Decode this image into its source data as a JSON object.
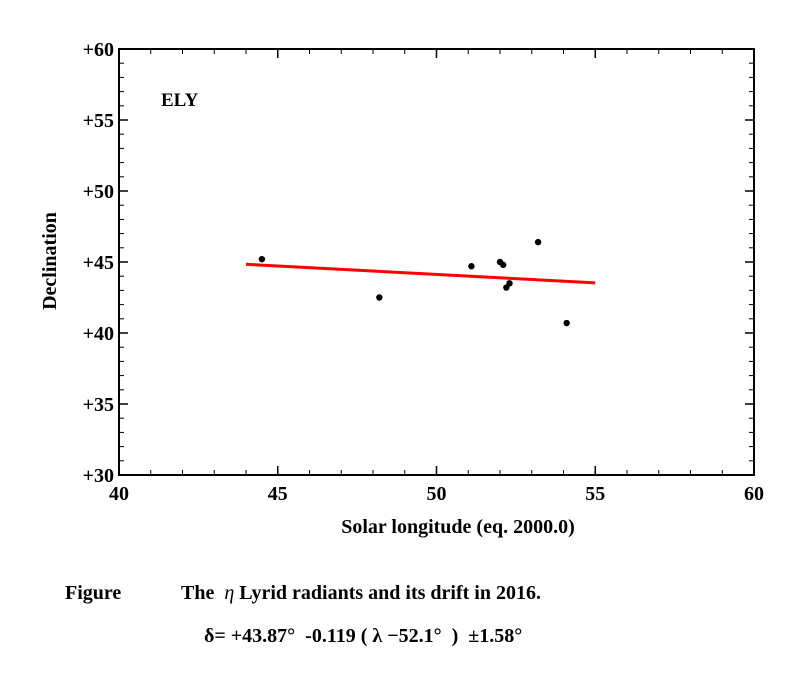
{
  "chart_data": {
    "type": "scatter",
    "annotation": "ELY",
    "xlabel": "Solar longitude (eq. 2000.0)",
    "ylabel": "Declination",
    "xlim": [
      40,
      60
    ],
    "ylim": [
      30,
      60
    ],
    "x_ticks": [
      40,
      45,
      50,
      55,
      60
    ],
    "y_ticks": [
      30,
      35,
      40,
      45,
      50,
      55,
      60
    ],
    "x_tick_labels": [
      "40",
      "45",
      "50",
      "55",
      "60"
    ],
    "y_tick_labels": [
      "+30",
      "+35",
      "+40",
      "+45",
      "+50",
      "+55",
      "+60"
    ],
    "grid": false,
    "point_color": "#000000",
    "fit_color": "#ff0000",
    "points": [
      {
        "x": 44.5,
        "y": 45.2
      },
      {
        "x": 48.2,
        "y": 42.5
      },
      {
        "x": 51.1,
        "y": 44.7
      },
      {
        "x": 52.0,
        "y": 45.0
      },
      {
        "x": 52.1,
        "y": 44.8
      },
      {
        "x": 52.2,
        "y": 43.2
      },
      {
        "x": 52.3,
        "y": 43.5
      },
      {
        "x": 53.2,
        "y": 46.4
      },
      {
        "x": 54.1,
        "y": 40.7
      }
    ],
    "fit_line": {
      "x": [
        44.0,
        55.0
      ],
      "y": [
        44.84,
        43.53
      ]
    }
  },
  "caption": {
    "label": "Figure",
    "text_prefix": "The",
    "eta": "η",
    "text_suffix": "Lyrid radiants and its drift in 2016.",
    "formula": "δ= +43.87°  -0.119 ( λ −52.1°  )  ±1.58°"
  }
}
